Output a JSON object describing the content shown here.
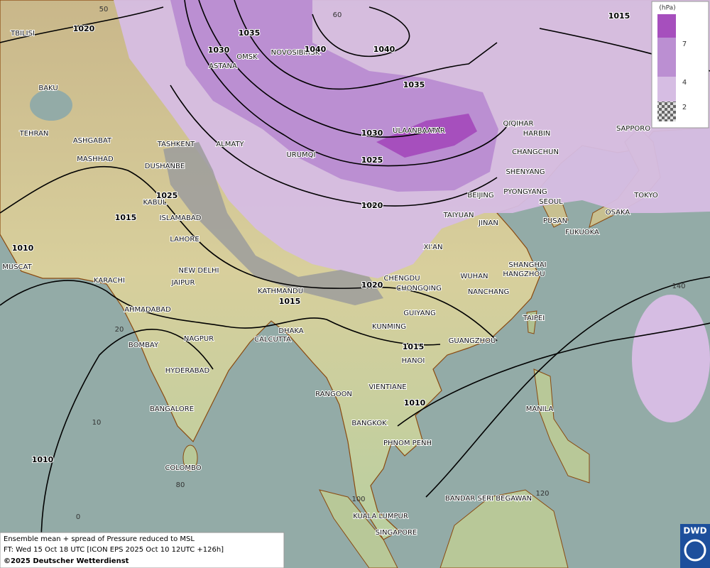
{
  "map": {
    "cities": [
      "TBILISI",
      "BAKU",
      "TEHRAN",
      "ASHGABAT",
      "MASHHAD",
      "TASHKENT",
      "ALMATY",
      "DUSHANBE",
      "KABUL",
      "ISLAMABAD",
      "LAHORE",
      "NEW DELHI",
      "JAIPUR",
      "KARACHI",
      "MUSCAT",
      "AHMADABAD",
      "BOMBAY",
      "NAGPUR",
      "HYDERABAD",
      "BANGALORE",
      "COLOMBO",
      "CALCUTTA",
      "DHAKA",
      "KATHMANDU",
      "OMSK",
      "NOVOSIBIRSK",
      "ASTANA",
      "URUMQI",
      "ULAANBAATAR",
      "QIQIHAR",
      "HARBIN",
      "CHANGCHUN",
      "SHENYANG",
      "BEIJING",
      "PYONGYANG",
      "SEOUL",
      "PUSAN",
      "FUKUOKA",
      "OSAKA",
      "TOKYO",
      "SAPPORO",
      "TAIYUAN",
      "JINAN",
      "XI'AN",
      "CHENGDU",
      "CHONGQING",
      "WUHAN",
      "SHANGHAI",
      "HANGZHOU",
      "NANCHANG",
      "GUIYANG",
      "KUNMING",
      "TAIPEI",
      "GUANGZHOU",
      "HANOI",
      "RANGOON",
      "VIENTIANE",
      "BANGKOK",
      "PHNOM PENH",
      "MANILA",
      "BANDAR SERI BEGAWAN",
      "KUALA LUMPUR",
      "SINGAPORE"
    ],
    "isobar_labels": [
      1020,
      1035,
      1030,
      1040,
      1040,
      1035,
      1030,
      1025,
      1020,
      1020,
      1015,
      1015,
      1010,
      1025,
      1015,
      1010,
      1010,
      1015
    ],
    "graticule_labels": [
      50,
      60,
      140,
      20,
      10,
      80,
      0,
      100,
      120
    ]
  },
  "legend": {
    "unit": "(hPa)",
    "levels": [
      7,
      4,
      2
    ]
  },
  "footer": {
    "lines": [
      "Ensemble mean + spread of Pressure reduced to MSL",
      "FT: Wed 15 Oct 18 UTC [ICON EPS 2025 Oct 10 12UTC +126h]",
      "©2025 Deutscher Wetterdienst"
    ]
  },
  "logo": "DWD"
}
